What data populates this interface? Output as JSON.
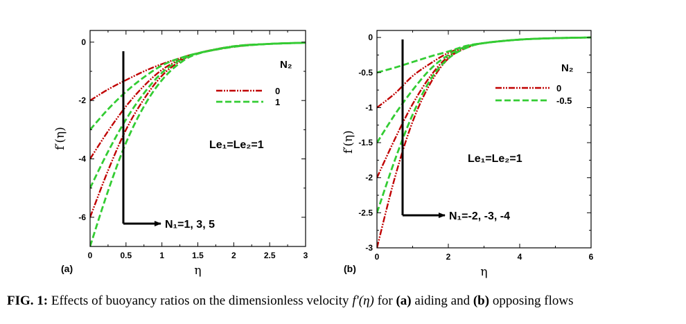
{
  "colors": {
    "n2_zero": "#c00000",
    "n2_nonzero": "#33cc33",
    "axis": "#000000"
  },
  "caption": {
    "label": "FIG. 1:",
    "text_before": " Effects of buoyancy ratios on the dimensionless velocity ",
    "math": "f′(η)",
    "text_mid1": " for ",
    "part_a": "(a)",
    "text_mid2": " aiding and ",
    "part_b": "(b)",
    "text_after": " opposing flows"
  },
  "chart_data": [
    {
      "type": "line",
      "panel_label": "(a)",
      "xlabel": "η",
      "ylabel": "f′(η)",
      "xlim": [
        0,
        3
      ],
      "ylim": [
        -7,
        0.4
      ],
      "xticks": [
        "0",
        "0.5",
        "1",
        "1.5",
        "2",
        "2.5",
        "3"
      ],
      "yticks": [
        "0",
        "-2",
        "-4",
        "-6"
      ],
      "legend_title": "N₂",
      "legend_position": "top-right",
      "annotation": "Le₁=Le₂=1",
      "arrow_label": "N₁=1, 3, 5",
      "series": [
        {
          "name": "0",
          "style": "dash-dot-dot",
          "x": [
            0,
            0.25,
            0.5,
            0.75,
            1,
            1.25,
            1.5,
            2,
            2.5,
            3
          ],
          "y": [
            -2,
            -1.62,
            -1.3,
            -1.0,
            -0.75,
            -0.55,
            -0.38,
            -0.16,
            -0.06,
            -0.02
          ]
        },
        {
          "name": "0",
          "style": "dash-dot-dot",
          "x": [
            0,
            0.25,
            0.5,
            0.75,
            1,
            1.25,
            1.5,
            2,
            2.5,
            3
          ],
          "y": [
            -4,
            -3.05,
            -2.2,
            -1.5,
            -0.95,
            -0.6,
            -0.38,
            -0.15,
            -0.06,
            -0.02
          ]
        },
        {
          "name": "0",
          "style": "dash-dot-dot",
          "x": [
            0,
            0.25,
            0.5,
            0.75,
            1,
            1.25,
            1.5,
            2,
            2.5,
            3
          ],
          "y": [
            -6,
            -4.4,
            -3.0,
            -1.95,
            -1.15,
            -0.66,
            -0.38,
            -0.14,
            -0.06,
            -0.02
          ]
        },
        {
          "name": "1",
          "style": "dashed",
          "x": [
            0,
            0.25,
            0.5,
            0.75,
            1,
            1.25,
            1.5,
            2,
            2.5,
            3
          ],
          "y": [
            -3,
            -2.3,
            -1.7,
            -1.2,
            -0.8,
            -0.55,
            -0.38,
            -0.16,
            -0.06,
            -0.02
          ]
        },
        {
          "name": "1",
          "style": "dashed",
          "x": [
            0,
            0.25,
            0.5,
            0.75,
            1,
            1.25,
            1.5,
            2,
            2.5,
            3
          ],
          "y": [
            -5,
            -3.75,
            -2.65,
            -1.75,
            -1.05,
            -0.62,
            -0.38,
            -0.15,
            -0.06,
            -0.02
          ]
        },
        {
          "name": "1",
          "style": "dashed",
          "x": [
            0,
            0.25,
            0.5,
            0.75,
            1,
            1.25,
            1.5,
            2,
            2.5,
            3
          ],
          "y": [
            -7,
            -5.1,
            -3.45,
            -2.2,
            -1.3,
            -0.72,
            -0.4,
            -0.14,
            -0.06,
            -0.02
          ]
        }
      ]
    },
    {
      "type": "line",
      "panel_label": "(b)",
      "xlabel": "η",
      "ylabel": "f′(η)",
      "xlim": [
        0,
        6
      ],
      "ylim": [
        -3,
        0.1
      ],
      "xticks": [
        "0",
        "2",
        "4",
        "6"
      ],
      "yticks": [
        "0",
        "-0.5",
        "-1",
        "-1.5",
        "-2",
        "-2.5",
        "-3"
      ],
      "legend_title": "N₂",
      "legend_position": "top-right",
      "annotation": "Le₁=Le₂=1",
      "arrow_label": "N₁=-2, -3, -4",
      "series": [
        {
          "name": "0",
          "style": "dash-dot-dot",
          "x": [
            0,
            0.5,
            1,
            1.5,
            2,
            2.5,
            3,
            4,
            5,
            6
          ],
          "y": [
            -1,
            -0.8,
            -0.55,
            -0.37,
            -0.22,
            -0.13,
            -0.08,
            -0.03,
            -0.01,
            0
          ]
        },
        {
          "name": "0",
          "style": "dash-dot-dot",
          "x": [
            0,
            0.5,
            1,
            1.5,
            2,
            2.5,
            3,
            4,
            5,
            6
          ],
          "y": [
            -2,
            -1.45,
            -0.95,
            -0.55,
            -0.27,
            -0.14,
            -0.08,
            -0.03,
            -0.01,
            0
          ]
        },
        {
          "name": "0",
          "style": "dash-dot-dot",
          "x": [
            0,
            0.5,
            1,
            1.5,
            2,
            2.5,
            3,
            4,
            5,
            6
          ],
          "y": [
            -3,
            -2.0,
            -1.2,
            -0.65,
            -0.3,
            -0.15,
            -0.08,
            -0.03,
            -0.01,
            0
          ]
        },
        {
          "name": "-0.5",
          "style": "dashed",
          "x": [
            0,
            0.5,
            1,
            1.5,
            2,
            2.5,
            3,
            4,
            5,
            6
          ],
          "y": [
            -0.5,
            -0.43,
            -0.35,
            -0.27,
            -0.2,
            -0.12,
            -0.08,
            -0.03,
            -0.01,
            0
          ]
        },
        {
          "name": "-0.5",
          "style": "dashed",
          "x": [
            0,
            0.5,
            1,
            1.5,
            2,
            2.5,
            3,
            4,
            5,
            6
          ],
          "y": [
            -1.5,
            -1.1,
            -0.75,
            -0.45,
            -0.25,
            -0.13,
            -0.08,
            -0.03,
            -0.01,
            0
          ]
        },
        {
          "name": "-0.5",
          "style": "dashed",
          "x": [
            0,
            0.5,
            1,
            1.5,
            2,
            2.5,
            3,
            4,
            5,
            6
          ],
          "y": [
            -2.5,
            -1.75,
            -1.1,
            -0.6,
            -0.3,
            -0.15,
            -0.08,
            -0.03,
            -0.01,
            0
          ]
        }
      ]
    }
  ]
}
